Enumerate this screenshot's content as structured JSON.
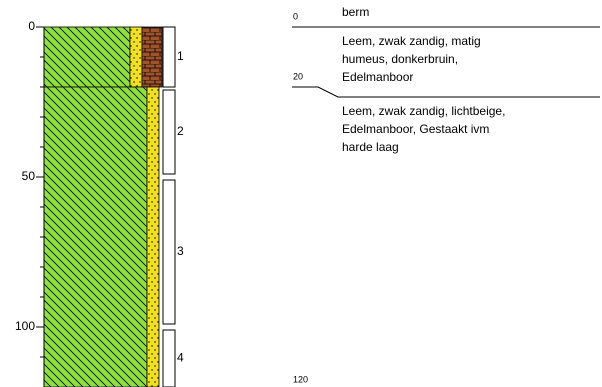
{
  "axis": {
    "ticks": [
      0,
      50,
      100
    ],
    "minor_ticks": [
      10,
      20,
      30,
      40,
      60,
      70,
      80,
      90,
      110
    ],
    "lim": [
      0,
      120
    ]
  },
  "layers": [
    {
      "top": 0,
      "bottom": 20,
      "remark": "berm",
      "description": [
        "Leem, zwak zandig, matig",
        "humeus, donkerbruin,",
        "Edelmanboor"
      ]
    },
    {
      "top": 20,
      "bottom": 120,
      "description": [
        "Leem, zwak zandig, lichtbeige,",
        "Edelmanboor, Gestaakt ivm",
        "harde laag"
      ]
    }
  ],
  "samples": [
    {
      "label": "1",
      "top": 0,
      "bottom": 20
    },
    {
      "label": "2",
      "top": 21,
      "bottom": 49
    },
    {
      "label": "3",
      "top": 51,
      "bottom": 99
    },
    {
      "label": "4",
      "top": 101,
      "bottom": 120
    }
  ]
}
